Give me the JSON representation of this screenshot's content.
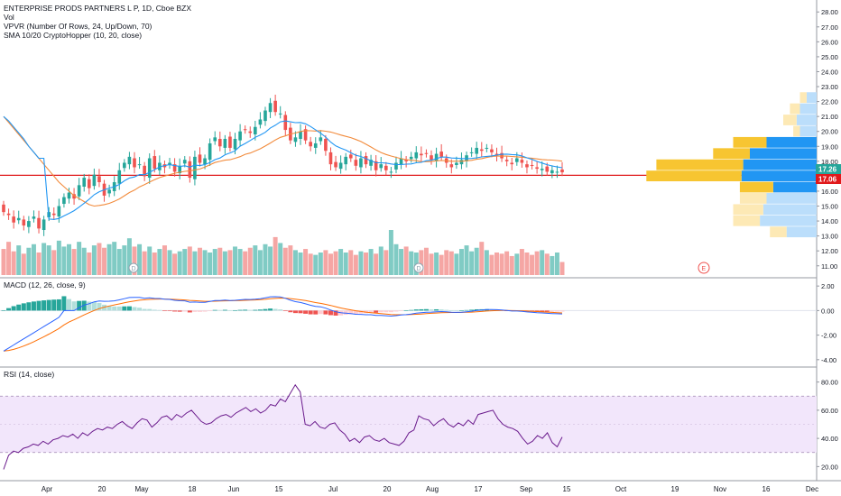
{
  "header": {
    "symbol_line": "ENTERPRISE PRODS PARTNERS L P, 1D, Cboe BZX",
    "indicators": [
      "Vol",
      "VPVR (Number Of Rows, 24, Up/Down, 70)",
      "SMA 10/20 CryptoHopper (10, 20, close)"
    ]
  },
  "colors": {
    "up": "#26a69a",
    "down": "#ef5350",
    "up_vol": "#80cbc4",
    "down_vol": "#f5a6a4",
    "sma10": "#2196f3",
    "sma20": "#f28b3c",
    "hline": "#e0191b",
    "vp_up": "#2196f3",
    "vp_down": "#f7c531",
    "vp_up_faint": "#bbdefb",
    "vp_down_faint": "#fde9b5",
    "rsi_band": "#f2e6fb",
    "rsi_line": "#6a1a8c",
    "macd_line": "#2962ff",
    "signal_line": "#ff6d00"
  },
  "price_labels": {
    "last": "17.26",
    "level": "17.06"
  },
  "markers": {
    "dividend": "D",
    "earnings": "E"
  },
  "x_labels": [
    "Apr",
    "20",
    "May",
    "18",
    "Jun",
    "15",
    "Jul",
    "20",
    "Aug",
    "17",
    "Sep",
    "15",
    "Oct",
    "19",
    "Nov",
    "16",
    "Dec"
  ],
  "macd_title": "MACD (12, 26, close, 9)",
  "rsi_title": "RSI (14, close)",
  "chart_data": [
    {
      "type": "candlestick",
      "title": "ENTERPRISE PRODS PARTNERS L P, 1D, Cboe BZX",
      "ylim": [
        10.2,
        28.8
      ],
      "y_ticks": [
        "11.00",
        "12.00",
        "13.00",
        "14.00",
        "15.00",
        "16.00",
        "17.00",
        "18.00",
        "19.00",
        "20.00",
        "21.00",
        "22.00",
        "23.00",
        "24.00",
        "25.00",
        "26.00",
        "27.00",
        "28.00"
      ],
      "close": [
        14.6,
        14.4,
        13.9,
        14.2,
        13.7,
        14.0,
        14.3,
        13.5,
        14.1,
        14.6,
        14.4,
        15.0,
        15.6,
        15.9,
        15.5,
        16.4,
        16.9,
        16.2,
        17.1,
        16.6,
        15.7,
        16.1,
        16.6,
        17.4,
        17.9,
        18.3,
        17.6,
        17.8,
        17.0,
        18.2,
        17.5,
        17.9,
        17.6,
        17.9,
        17.3,
        17.7,
        18.1,
        16.9,
        18.3,
        17.9,
        18.2,
        19.2,
        19.6,
        19.0,
        19.5,
        18.9,
        19.5,
        20.0,
        20.1,
        19.9,
        20.3,
        20.8,
        21.4,
        21.9,
        21.3,
        21.2,
        20.1,
        19.4,
        19.6,
        20.0,
        19.4,
        19.0,
        19.2,
        19.6,
        18.7,
        17.8,
        17.6,
        17.9,
        18.3,
        18.2,
        17.7,
        18.2,
        17.8,
        18.1,
        17.4,
        17.8,
        17.4,
        17.3,
        17.9,
        18.2,
        18.0,
        18.3,
        18.6,
        18.4,
        18.5,
        18.1,
        18.5,
        18.3,
        17.9,
        17.6,
        17.9,
        18.1,
        18.4,
        18.6,
        18.9,
        18.7,
        18.9,
        18.6,
        18.4,
        18.2,
        18.0,
        17.8,
        18.2,
        17.9,
        17.6,
        17.7,
        17.5,
        17.5,
        17.3,
        17.4,
        17.3,
        17.26
      ],
      "volume": [
        2.2,
        2.8,
        2.0,
        2.5,
        1.8,
        2.3,
        2.6,
        1.9,
        2.7,
        2.5,
        2.1,
        2.9,
        2.4,
        2.6,
        2.2,
        2.8,
        2.3,
        1.9,
        2.5,
        2.7,
        2.3,
        2.6,
        2.8,
        2.2,
        2.5,
        3.1,
        2.4,
        2.6,
        2.0,
        2.4,
        1.9,
        2.2,
        2.5,
        2.1,
        1.8,
        2.0,
        2.2,
        2.4,
        2.0,
        2.3,
        2.1,
        1.9,
        2.2,
        2.3,
        2.0,
        2.1,
        2.4,
        2.2,
        2.0,
        2.3,
        2.5,
        2.1,
        2.6,
        2.4,
        3.2,
        2.7,
        2.3,
        2.5,
        2.1,
        1.9,
        2.2,
        1.8,
        1.7,
        1.9,
        2.1,
        1.8,
        2.0,
        2.2,
        1.9,
        2.1,
        1.7,
        2.0,
        1.9,
        2.2,
        1.8,
        2.4,
        2.1,
        3.8,
        2.6,
        2.2,
        2.4,
        2.0,
        1.9,
        2.1,
        2.3,
        1.8,
        1.9,
        1.7,
        2.1,
        2.0,
        1.8,
        2.2,
        2.5,
        2.0,
        2.3,
        2.8,
        2.1,
        1.7,
        1.9,
        1.8,
        2.0,
        1.6,
        1.8,
        2.2,
        1.9,
        1.7,
        2.0,
        2.1,
        1.8,
        1.6,
        1.9,
        1.1
      ],
      "sma10_start": [
        21.0,
        20.7,
        20.3,
        19.9,
        19.5,
        19.0,
        18.6,
        18.2
      ],
      "volume_profile_rows": [
        {
          "price": 11.0,
          "up": 0,
          "down": 0
        },
        {
          "price": 11.75,
          "up": 0,
          "down": 0
        },
        {
          "price": 12.5,
          "up": 0,
          "down": 0
        },
        {
          "price": 13.25,
          "up": 0.18,
          "down": 0.1
        },
        {
          "price": 14.0,
          "up": 0.34,
          "down": 0.16
        },
        {
          "price": 14.75,
          "up": 0.32,
          "down": 0.18
        },
        {
          "price": 15.5,
          "up": 0.3,
          "down": 0.16
        },
        {
          "price": 16.25,
          "up": 0.26,
          "down": 0.2
        },
        {
          "price": 17.0,
          "up": 0.45,
          "down": 0.57
        },
        {
          "price": 17.75,
          "up": 0.44,
          "down": 0.52
        },
        {
          "price": 18.5,
          "up": 0.4,
          "down": 0.22
        },
        {
          "price": 19.25,
          "up": 0.3,
          "down": 0.2
        },
        {
          "price": 20.0,
          "up": 0.1,
          "down": 0.04
        },
        {
          "price": 20.75,
          "up": 0.12,
          "down": 0.08
        },
        {
          "price": 21.5,
          "up": 0.1,
          "down": 0.06
        },
        {
          "price": 22.25,
          "up": 0.06,
          "down": 0.04
        }
      ]
    },
    {
      "type": "bar+line",
      "title": "MACD (12, 26, close, 9)",
      "ylim": [
        -4.6,
        2.6
      ],
      "y_ticks": [
        "2.00",
        "0.00",
        "-2.00",
        "-4.00"
      ]
    },
    {
      "type": "line",
      "title": "RSI (14, close)",
      "ylim": [
        10,
        90
      ],
      "band": [
        30,
        70
      ],
      "y_ticks": [
        "80.00",
        "60.00",
        "40.00",
        "20.00"
      ],
      "values": [
        18,
        28,
        31,
        30,
        33,
        34,
        36,
        35,
        38,
        36,
        39,
        40,
        42,
        41,
        43,
        40,
        44,
        42,
        45,
        47,
        46,
        48,
        47,
        50,
        52,
        49,
        47,
        51,
        54,
        53,
        48,
        51,
        55,
        56,
        53,
        57,
        55,
        58,
        60,
        56,
        52,
        50,
        51,
        54,
        56,
        57,
        55,
        58,
        60,
        62,
        59,
        61,
        58,
        60,
        64,
        63,
        68,
        66,
        72,
        78,
        73,
        50,
        49,
        52,
        48,
        47,
        50,
        51,
        46,
        43,
        38,
        40,
        37,
        41,
        42,
        39,
        38,
        40,
        37,
        36,
        35,
        38,
        44,
        46,
        56,
        54,
        53,
        49,
        52,
        54,
        50,
        48,
        51,
        49,
        53,
        50,
        57,
        58,
        59,
        60,
        54,
        50,
        48,
        47,
        45,
        40,
        36,
        38,
        42,
        40,
        44,
        37,
        34,
        41
      ]
    }
  ]
}
